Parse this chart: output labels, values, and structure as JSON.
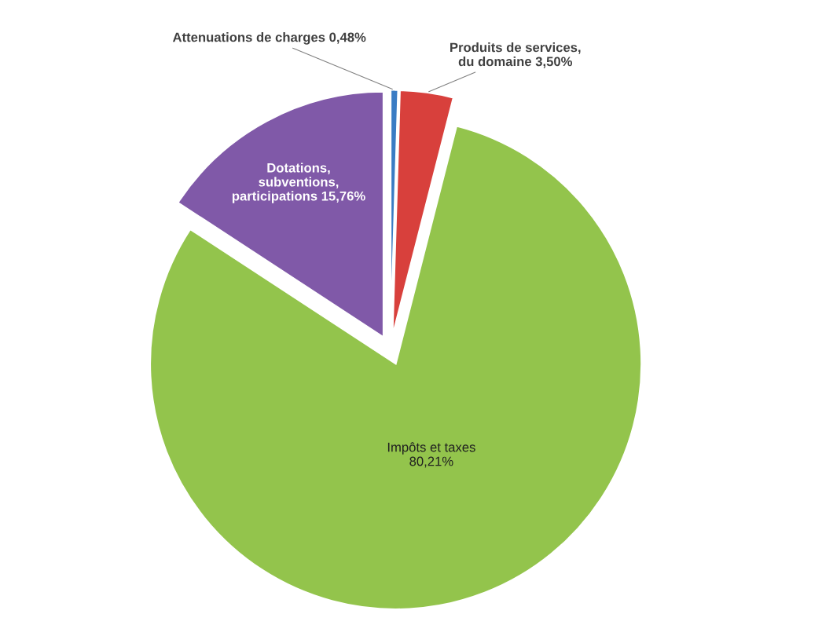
{
  "chart_data": {
    "type": "pie",
    "categories": [
      "Attenuations de charges",
      "Produits de services,\ndu domaine",
      "Impôts et taxes",
      "Dotations,\nsubventions,\nparticipations"
    ],
    "values": [
      0.48,
      3.5,
      80.21,
      15.76
    ],
    "value_labels": [
      "0,48%",
      "3,50%",
      "80,21%",
      "15,76%"
    ],
    "colors": [
      "#3a7cc4",
      "#d8403c",
      "#93c44c",
      "#8059a8"
    ]
  }
}
